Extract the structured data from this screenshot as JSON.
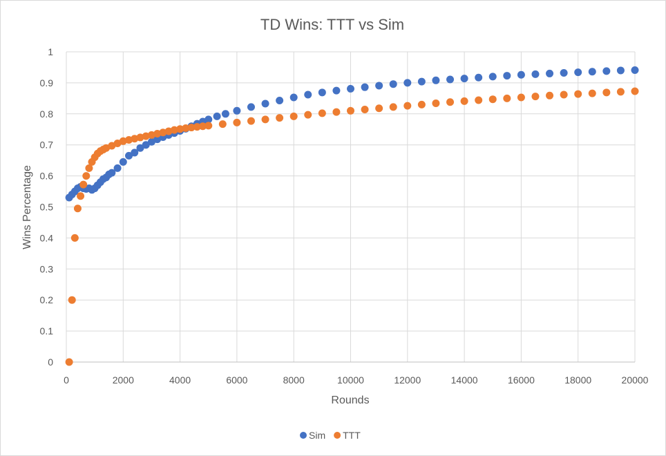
{
  "chart_data": {
    "type": "scatter",
    "title": "TD Wins: TTT vs Sim",
    "xlabel": "Rounds",
    "ylabel": "Wins Percentage",
    "xlim": [
      0,
      20000
    ],
    "ylim": [
      0,
      1
    ],
    "x_ticks": [
      "0",
      "2000",
      "4000",
      "6000",
      "8000",
      "10000",
      "12000",
      "14000",
      "16000",
      "18000",
      "20000"
    ],
    "y_ticks": [
      "0",
      "0.1",
      "0.2",
      "0.3",
      "0.4",
      "0.5",
      "0.6",
      "0.7",
      "0.8",
      "0.9",
      "1"
    ],
    "grid": true,
    "legend_position": "bottom",
    "series": [
      {
        "name": "Sim",
        "color": "#4472c4",
        "points": [
          [
            100,
            0.53
          ],
          [
            200,
            0.54
          ],
          [
            300,
            0.55
          ],
          [
            400,
            0.56
          ],
          [
            500,
            0.565
          ],
          [
            600,
            0.56
          ],
          [
            700,
            0.558
          ],
          [
            800,
            0.56
          ],
          [
            900,
            0.555
          ],
          [
            1000,
            0.56
          ],
          [
            1100,
            0.57
          ],
          [
            1200,
            0.58
          ],
          [
            1300,
            0.59
          ],
          [
            1400,
            0.595
          ],
          [
            1500,
            0.605
          ],
          [
            1600,
            0.61
          ],
          [
            1800,
            0.625
          ],
          [
            2000,
            0.645
          ],
          [
            2200,
            0.665
          ],
          [
            2400,
            0.675
          ],
          [
            2600,
            0.69
          ],
          [
            2800,
            0.7
          ],
          [
            3000,
            0.71
          ],
          [
            3200,
            0.718
          ],
          [
            3400,
            0.725
          ],
          [
            3600,
            0.732
          ],
          [
            3800,
            0.738
          ],
          [
            4000,
            0.745
          ],
          [
            4200,
            0.752
          ],
          [
            4400,
            0.76
          ],
          [
            4600,
            0.768
          ],
          [
            4800,
            0.775
          ],
          [
            5000,
            0.782
          ],
          [
            5300,
            0.792
          ],
          [
            5600,
            0.8
          ],
          [
            6000,
            0.81
          ],
          [
            6500,
            0.822
          ],
          [
            7000,
            0.833
          ],
          [
            7500,
            0.843
          ],
          [
            8000,
            0.853
          ],
          [
            8500,
            0.862
          ],
          [
            9000,
            0.869
          ],
          [
            9500,
            0.875
          ],
          [
            10000,
            0.881
          ],
          [
            10500,
            0.886
          ],
          [
            11000,
            0.891
          ],
          [
            11500,
            0.896
          ],
          [
            12000,
            0.9
          ],
          [
            12500,
            0.904
          ],
          [
            13000,
            0.908
          ],
          [
            13500,
            0.911
          ],
          [
            14000,
            0.914
          ],
          [
            14500,
            0.917
          ],
          [
            15000,
            0.92
          ],
          [
            15500,
            0.923
          ],
          [
            16000,
            0.926
          ],
          [
            16500,
            0.928
          ],
          [
            17000,
            0.93
          ],
          [
            17500,
            0.932
          ],
          [
            18000,
            0.934
          ],
          [
            18500,
            0.936
          ],
          [
            19000,
            0.938
          ],
          [
            19500,
            0.94
          ],
          [
            20000,
            0.941
          ]
        ]
      },
      {
        "name": "TTT",
        "color": "#ed7d31",
        "points": [
          [
            100,
            0.0
          ],
          [
            200,
            0.2
          ],
          [
            300,
            0.4
          ],
          [
            400,
            0.495
          ],
          [
            500,
            0.535
          ],
          [
            600,
            0.572
          ],
          [
            700,
            0.6
          ],
          [
            800,
            0.625
          ],
          [
            900,
            0.645
          ],
          [
            1000,
            0.66
          ],
          [
            1100,
            0.672
          ],
          [
            1200,
            0.68
          ],
          [
            1300,
            0.685
          ],
          [
            1400,
            0.69
          ],
          [
            1600,
            0.697
          ],
          [
            1800,
            0.705
          ],
          [
            2000,
            0.712
          ],
          [
            2200,
            0.716
          ],
          [
            2400,
            0.72
          ],
          [
            2600,
            0.724
          ],
          [
            2800,
            0.728
          ],
          [
            3000,
            0.732
          ],
          [
            3200,
            0.736
          ],
          [
            3400,
            0.74
          ],
          [
            3600,
            0.744
          ],
          [
            3800,
            0.748
          ],
          [
            4000,
            0.751
          ],
          [
            4200,
            0.754
          ],
          [
            4400,
            0.756
          ],
          [
            4600,
            0.758
          ],
          [
            4800,
            0.76
          ],
          [
            5000,
            0.762
          ],
          [
            5500,
            0.767
          ],
          [
            6000,
            0.772
          ],
          [
            6500,
            0.777
          ],
          [
            7000,
            0.782
          ],
          [
            7500,
            0.787
          ],
          [
            8000,
            0.792
          ],
          [
            8500,
            0.797
          ],
          [
            9000,
            0.802
          ],
          [
            9500,
            0.806
          ],
          [
            10000,
            0.81
          ],
          [
            10500,
            0.814
          ],
          [
            11000,
            0.818
          ],
          [
            11500,
            0.822
          ],
          [
            12000,
            0.826
          ],
          [
            12500,
            0.83
          ],
          [
            13000,
            0.834
          ],
          [
            13500,
            0.838
          ],
          [
            14000,
            0.841
          ],
          [
            14500,
            0.844
          ],
          [
            15000,
            0.847
          ],
          [
            15500,
            0.85
          ],
          [
            16000,
            0.853
          ],
          [
            16500,
            0.856
          ],
          [
            17000,
            0.859
          ],
          [
            17500,
            0.862
          ],
          [
            18000,
            0.864
          ],
          [
            18500,
            0.866
          ],
          [
            19000,
            0.869
          ],
          [
            19500,
            0.871
          ],
          [
            20000,
            0.873
          ]
        ]
      }
    ]
  }
}
